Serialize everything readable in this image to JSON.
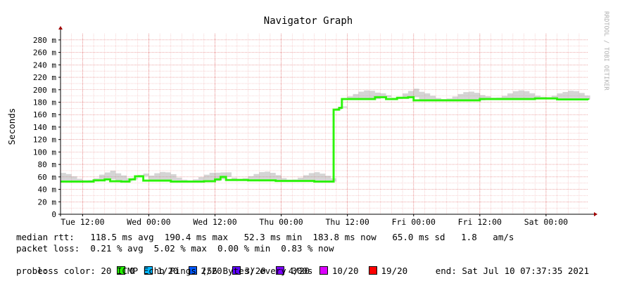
{
  "chart_data": {
    "type": "line",
    "title": "Navigator Graph",
    "ylabel": "Seconds",
    "watermark": "RRDTOOL / TOBI OETIKER",
    "ylim": [
      0,
      0.29
    ],
    "yticks": [
      {
        "value": 0,
        "label": "0"
      },
      {
        "value": 0.02,
        "label": "20 m"
      },
      {
        "value": 0.04,
        "label": "40 m"
      },
      {
        "value": 0.06,
        "label": "60 m"
      },
      {
        "value": 0.08,
        "label": "80 m"
      },
      {
        "value": 0.1,
        "label": "100 m"
      },
      {
        "value": 0.12,
        "label": "120 m"
      },
      {
        "value": 0.14,
        "label": "140 m"
      },
      {
        "value": 0.16,
        "label": "160 m"
      },
      {
        "value": 0.18,
        "label": "180 m"
      },
      {
        "value": 0.2,
        "label": "200 m"
      },
      {
        "value": 0.22,
        "label": "220 m"
      },
      {
        "value": 0.24,
        "label": "240 m"
      },
      {
        "value": 0.26,
        "label": "260 m"
      },
      {
        "value": 0.28,
        "label": "280 m"
      }
    ],
    "xlim": [
      "2021-07-06 08:00",
      "2021-07-10 07:40"
    ],
    "xticks": [
      {
        "t": "2021-07-06 12:00",
        "label": "Tue 12:00"
      },
      {
        "t": "2021-07-07 00:00",
        "label": "Wed 00:00"
      },
      {
        "t": "2021-07-07 12:00",
        "label": "Wed 12:00"
      },
      {
        "t": "2021-07-08 00:00",
        "label": "Thu 00:00"
      },
      {
        "t": "2021-07-08 12:00",
        "label": "Thu 12:00"
      },
      {
        "t": "2021-07-09 00:00",
        "label": "Fri 00:00"
      },
      {
        "t": "2021-07-09 12:00",
        "label": "Fri 12:00"
      },
      {
        "t": "2021-07-10 00:00",
        "label": "Sat 00:00"
      }
    ],
    "grid": true,
    "series": [
      {
        "name": "median rtt",
        "points": [
          [
            "2021-07-06 08:00",
            0.0525
          ],
          [
            "2021-07-06 12:00",
            0.0525
          ],
          [
            "2021-07-06 14:00",
            0.0545
          ],
          [
            "2021-07-06 16:00",
            0.056
          ],
          [
            "2021-07-06 17:00",
            0.053
          ],
          [
            "2021-07-06 19:00",
            0.0525
          ],
          [
            "2021-07-06 20:30",
            0.056
          ],
          [
            "2021-07-06 21:30",
            0.061
          ],
          [
            "2021-07-06 23:00",
            0.054
          ],
          [
            "2021-07-07 04:00",
            0.0525
          ],
          [
            "2021-07-07 10:00",
            0.053
          ],
          [
            "2021-07-07 12:00",
            0.056
          ],
          [
            "2021-07-07 13:00",
            0.06
          ],
          [
            "2021-07-07 14:00",
            0.055
          ],
          [
            "2021-07-07 18:00",
            0.0545
          ],
          [
            "2021-07-07 23:00",
            0.0535
          ],
          [
            "2021-07-08 06:00",
            0.0525
          ],
          [
            "2021-07-08 09:00",
            0.0525
          ],
          [
            "2021-07-08 09:30",
            0.168
          ],
          [
            "2021-07-08 10:30",
            0.171
          ],
          [
            "2021-07-08 11:00",
            0.185
          ],
          [
            "2021-07-08 14:00",
            0.185
          ],
          [
            "2021-07-08 17:00",
            0.188
          ],
          [
            "2021-07-08 19:00",
            0.185
          ],
          [
            "2021-07-08 21:00",
            0.187
          ],
          [
            "2021-07-08 23:00",
            0.188
          ],
          [
            "2021-07-09 00:00",
            0.183
          ],
          [
            "2021-07-09 03:00",
            0.183
          ],
          [
            "2021-07-09 09:00",
            0.183
          ],
          [
            "2021-07-09 12:00",
            0.185
          ],
          [
            "2021-07-09 18:00",
            0.185
          ],
          [
            "2021-07-09 22:00",
            0.186
          ],
          [
            "2021-07-10 02:00",
            0.1845
          ],
          [
            "2021-07-10 07:40",
            0.184
          ]
        ]
      }
    ]
  },
  "legend": {
    "median_rtt": "median rtt:   118.5 ms avg  190.4 ms max   52.3 ms min  183.8 ms now   65.0 ms sd   1.8   am/s",
    "packet_loss": "packet loss:  0.21 % avg  5.02 % max  0.00 % min  0.83 % now",
    "loss_color_label": "loss color:",
    "loss_colors": [
      {
        "label": "0",
        "color": "#26ff00"
      },
      {
        "label": "1/20",
        "color": "#00b8ff"
      },
      {
        "label": "2/20",
        "color": "#0059ff"
      },
      {
        "label": "3/20",
        "color": "#5e00ff"
      },
      {
        "label": "4/20",
        "color": "#7e00ff"
      },
      {
        "label": "10/20",
        "color": "#dd00ff"
      },
      {
        "label": "19/20",
        "color": "#ff0000"
      }
    ],
    "probe": "probe:          20 ICMP Echo Pings (56 Bytes) every 300s",
    "end": "end: Sat Jul 10 07:37:35 2021"
  },
  "colors": {
    "grid_minor": "#f2b6b6",
    "grid_major": "#e27575",
    "axis": "#000000",
    "arrow": "#a00000",
    "smoke": "#888888"
  }
}
